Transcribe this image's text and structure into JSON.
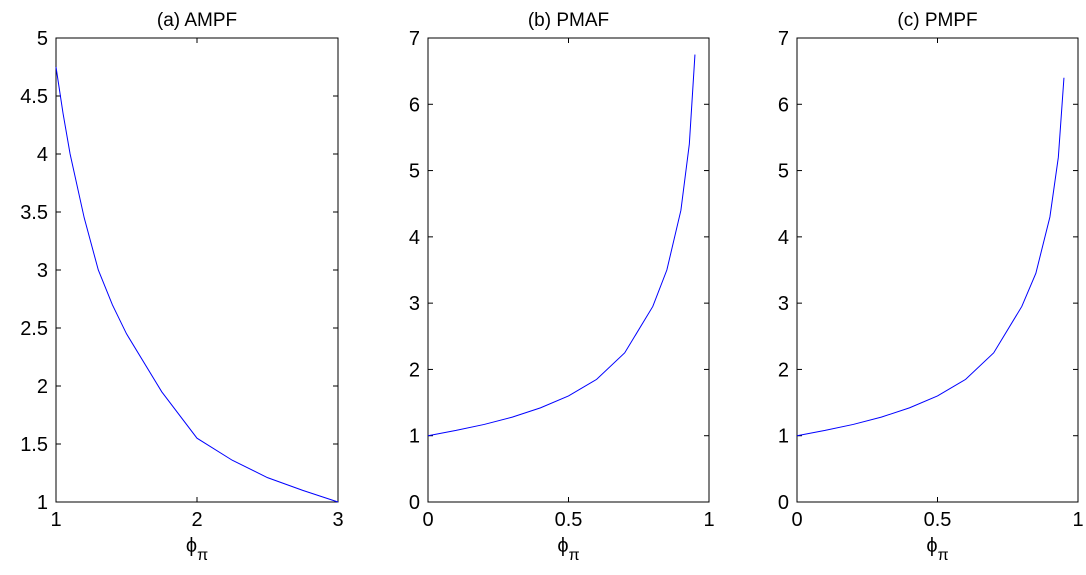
{
  "chart_data": [
    {
      "type": "line",
      "title": "(a) AMPF",
      "xlabel": "ϕπ",
      "x": [
        1,
        1.05,
        1.1,
        1.2,
        1.3,
        1.4,
        1.5,
        1.75,
        2,
        2.25,
        2.5,
        2.75,
        3
      ],
      "series": [
        {
          "color": "#0000ff",
          "values": [
            4.75,
            4.35,
            4.0,
            3.45,
            3.0,
            2.7,
            2.45,
            1.95,
            1.55,
            1.36,
            1.21,
            1.1,
            1.0
          ]
        }
      ],
      "xlim": [
        1,
        3
      ],
      "xticks": [
        1,
        2,
        3
      ],
      "ylim": [
        1,
        5
      ],
      "yticks": [
        1,
        1.5,
        2,
        2.5,
        3,
        3.5,
        4,
        4.5,
        5
      ]
    },
    {
      "type": "line",
      "title": "(b) PMAF",
      "xlabel": "ϕπ",
      "x": [
        0,
        0.1,
        0.2,
        0.3,
        0.4,
        0.5,
        0.6,
        0.7,
        0.8,
        0.85,
        0.9,
        0.93,
        0.95
      ],
      "series": [
        {
          "color": "#0000ff",
          "values": [
            1.0,
            1.08,
            1.17,
            1.28,
            1.42,
            1.6,
            1.85,
            2.25,
            2.95,
            3.5,
            4.4,
            5.4,
            6.75
          ]
        }
      ],
      "xlim": [
        0,
        1
      ],
      "xticks": [
        0,
        0.5,
        1
      ],
      "ylim": [
        0,
        7
      ],
      "yticks": [
        0,
        1,
        2,
        3,
        4,
        5,
        6,
        7
      ]
    },
    {
      "type": "line",
      "title": "(c) PMPF",
      "xlabel": "ϕπ",
      "x": [
        0,
        0.1,
        0.2,
        0.3,
        0.4,
        0.5,
        0.6,
        0.7,
        0.8,
        0.85,
        0.9,
        0.93,
        0.95
      ],
      "series": [
        {
          "color": "#0000ff",
          "values": [
            1.0,
            1.08,
            1.17,
            1.28,
            1.42,
            1.6,
            1.85,
            2.25,
            2.95,
            3.45,
            4.3,
            5.2,
            6.4
          ]
        }
      ],
      "xlim": [
        0,
        1
      ],
      "xticks": [
        0,
        0.5,
        1
      ],
      "ylim": [
        0,
        7
      ],
      "yticks": [
        0,
        1,
        2,
        3,
        4,
        5,
        6,
        7
      ]
    }
  ]
}
